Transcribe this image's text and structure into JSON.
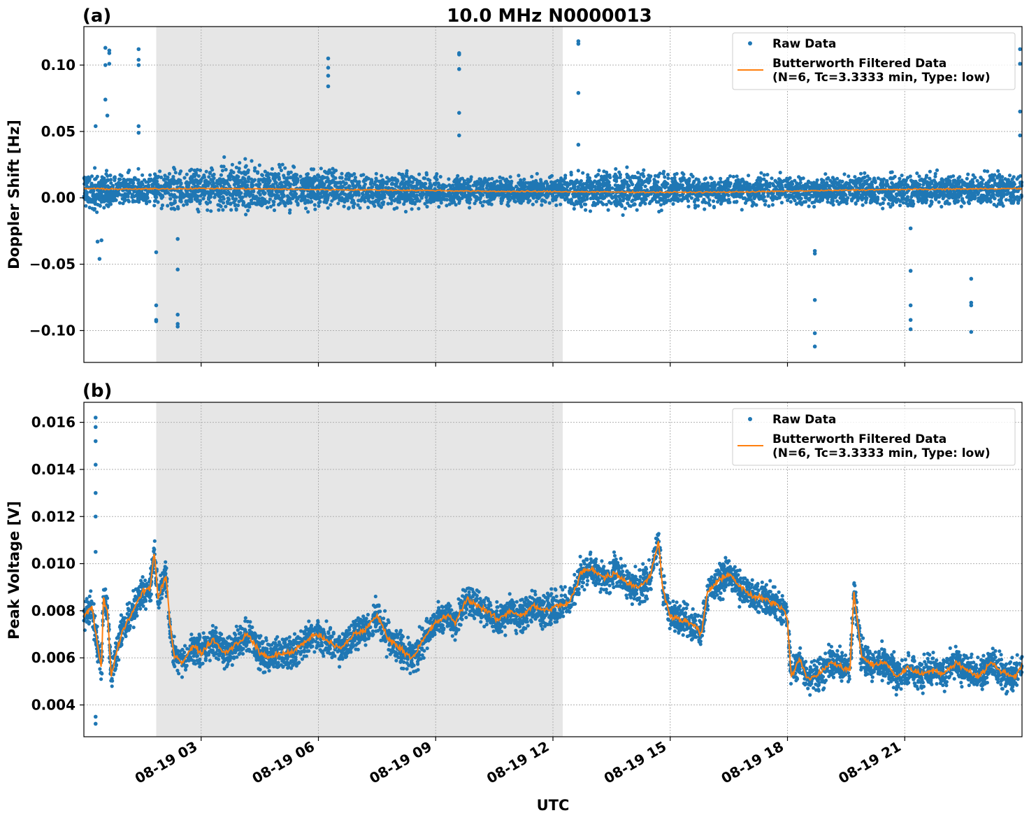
{
  "title": "10.0 MHz N0000013",
  "xlabel": "UTC",
  "x_tick_labels": [
    "08-19 03",
    "08-19 06",
    "08-19 09",
    "08-19 12",
    "08-19 15",
    "08-19 18",
    "08-19 21"
  ],
  "colors": {
    "raw": "#1f77b4",
    "filtered": "#ff7f0e",
    "shade": "#e6e6e6",
    "grid": "#b0b0b0"
  },
  "chart_data": [
    {
      "type": "scatter",
      "panel_label": "(a)",
      "ylabel": "Doppler Shift [Hz]",
      "xlim_hours": [
        0.0,
        24.0
      ],
      "ylim": [
        -0.124,
        0.129
      ],
      "y_ticks": [
        0.1,
        0.05,
        0.0,
        -0.05,
        -0.1
      ],
      "y_tick_labels": [
        "0.10",
        "0.05",
        "0.00",
        "−0.05",
        "−0.10"
      ],
      "shaded_region_hours": [
        1.85,
        12.25
      ],
      "grid": true,
      "legend_position": "top-right",
      "legend": [
        "Raw Data",
        "Butterworth Filtered Data\n(N=6, Tc=3.3333 min, Type: low)"
      ],
      "series": [
        {
          "name": "Raw Data",
          "style": "points",
          "band_x_hours": [
            0.0,
            1.0,
            2.0,
            3.0,
            4.0,
            5.0,
            6.0,
            7.0,
            8.0,
            9.0,
            10.0,
            11.0,
            12.0,
            13.0,
            14.0,
            15.0,
            16.0,
            17.0,
            18.0,
            19.0,
            20.0,
            21.0,
            22.0,
            23.0,
            24.0
          ],
          "band_low": [
            -0.014,
            -0.011,
            -0.012,
            -0.014,
            -0.019,
            -0.016,
            -0.013,
            -0.012,
            -0.011,
            -0.01,
            -0.008,
            -0.008,
            -0.007,
            -0.012,
            -0.014,
            -0.011,
            -0.01,
            -0.009,
            -0.009,
            -0.009,
            -0.009,
            -0.01,
            -0.01,
            -0.011,
            -0.01
          ],
          "band_high": [
            0.025,
            0.022,
            0.024,
            0.028,
            0.032,
            0.03,
            0.026,
            0.023,
            0.022,
            0.021,
            0.019,
            0.018,
            0.018,
            0.024,
            0.026,
            0.022,
            0.021,
            0.02,
            0.02,
            0.021,
            0.021,
            0.022,
            0.022,
            0.023,
            0.022
          ],
          "outliers": [
            {
              "x": 0.55,
              "y": 0.113
            },
            {
              "x": 0.55,
              "y": 0.1
            },
            {
              "x": 0.55,
              "y": 0.074
            },
            {
              "x": 0.6,
              "y": 0.062
            },
            {
              "x": 0.65,
              "y": 0.111
            },
            {
              "x": 0.65,
              "y": 0.101
            },
            {
              "x": 0.65,
              "y": 0.109
            },
            {
              "x": 1.4,
              "y": 0.112
            },
            {
              "x": 1.4,
              "y": 0.104
            },
            {
              "x": 1.4,
              "y": 0.1
            },
            {
              "x": 1.4,
              "y": 0.054
            },
            {
              "x": 1.4,
              "y": 0.049
            },
            {
              "x": 0.3,
              "y": 0.054
            },
            {
              "x": 0.35,
              "y": -0.033
            },
            {
              "x": 0.4,
              "y": -0.046
            },
            {
              "x": 0.45,
              "y": -0.032
            },
            {
              "x": 1.85,
              "y": -0.041
            },
            {
              "x": 1.85,
              "y": -0.081
            },
            {
              "x": 1.85,
              "y": -0.092
            },
            {
              "x": 1.85,
              "y": -0.093
            },
            {
              "x": 2.4,
              "y": -0.031
            },
            {
              "x": 2.4,
              "y": -0.054
            },
            {
              "x": 2.4,
              "y": -0.088
            },
            {
              "x": 2.4,
              "y": -0.095
            },
            {
              "x": 2.4,
              "y": -0.097
            },
            {
              "x": 6.25,
              "y": 0.105
            },
            {
              "x": 6.25,
              "y": 0.098
            },
            {
              "x": 6.25,
              "y": 0.092
            },
            {
              "x": 6.25,
              "y": 0.084
            },
            {
              "x": 9.6,
              "y": 0.109
            },
            {
              "x": 9.6,
              "y": 0.108
            },
            {
              "x": 9.6,
              "y": 0.097
            },
            {
              "x": 9.6,
              "y": 0.064
            },
            {
              "x": 9.6,
              "y": 0.047
            },
            {
              "x": 12.65,
              "y": 0.118
            },
            {
              "x": 12.65,
              "y": 0.116
            },
            {
              "x": 12.65,
              "y": 0.079
            },
            {
              "x": 12.65,
              "y": 0.04
            },
            {
              "x": 18.7,
              "y": -0.04
            },
            {
              "x": 18.7,
              "y": -0.042
            },
            {
              "x": 18.7,
              "y": -0.077
            },
            {
              "x": 18.7,
              "y": -0.102
            },
            {
              "x": 18.7,
              "y": -0.112
            },
            {
              "x": 21.15,
              "y": -0.023
            },
            {
              "x": 21.15,
              "y": -0.055
            },
            {
              "x": 21.15,
              "y": -0.081
            },
            {
              "x": 21.15,
              "y": -0.092
            },
            {
              "x": 21.15,
              "y": -0.099
            },
            {
              "x": 22.7,
              "y": -0.061
            },
            {
              "x": 22.7,
              "y": -0.079
            },
            {
              "x": 22.7,
              "y": -0.081
            },
            {
              "x": 22.7,
              "y": -0.101
            },
            {
              "x": 23.95,
              "y": 0.112
            },
            {
              "x": 23.95,
              "y": 0.101
            },
            {
              "x": 23.95,
              "y": 0.065
            },
            {
              "x": 23.95,
              "y": 0.047
            }
          ]
        },
        {
          "name": "Butterworth Filtered Data\n(N=6, Tc=3.3333 min, Type: low)",
          "style": "line",
          "x_hours": [
            0.0,
            1.0,
            2.0,
            3.0,
            4.0,
            5.0,
            6.0,
            7.0,
            8.0,
            9.0,
            10.0,
            11.0,
            12.0,
            13.0,
            14.0,
            15.0,
            16.0,
            17.0,
            18.0,
            19.0,
            20.0,
            21.0,
            22.0,
            23.0,
            24.0
          ],
          "y": [
            0.007,
            0.0065,
            0.0068,
            0.007,
            0.0068,
            0.0066,
            0.0062,
            0.006,
            0.0058,
            0.0055,
            0.005,
            0.0048,
            0.0047,
            0.0045,
            0.0043,
            0.0042,
            0.0042,
            0.0045,
            0.005,
            0.0055,
            0.006,
            0.0063,
            0.0065,
            0.0068,
            0.007
          ]
        }
      ]
    },
    {
      "type": "scatter",
      "panel_label": "(b)",
      "ylabel": "Peak Voltage [V]",
      "xlim_hours": [
        0.0,
        24.0
      ],
      "ylim": [
        0.00265,
        0.01685
      ],
      "y_ticks": [
        0.016,
        0.014,
        0.012,
        0.01,
        0.008,
        0.006,
        0.004
      ],
      "y_tick_labels": [
        "0.016",
        "0.014",
        "0.012",
        "0.010",
        "0.008",
        "0.006",
        "0.004"
      ],
      "shaded_region_hours": [
        1.85,
        12.25
      ],
      "grid": true,
      "legend_position": "top-right",
      "legend": [
        "Raw Data",
        "Butterworth Filtered Data\n(N=6, Tc=3.3333 min, Type: low)"
      ],
      "series": [
        {
          "name": "Raw Data",
          "style": "points",
          "spread": 0.0009,
          "spike_x_hours": [
            0.3,
            0.3,
            0.3,
            0.3,
            0.3,
            0.3,
            0.3,
            0.3,
            0.3
          ],
          "spike_y": [
            0.0162,
            0.0158,
            0.0152,
            0.0142,
            0.013,
            0.012,
            0.0105,
            0.0035,
            0.0032
          ]
        },
        {
          "name": "Butterworth Filtered Data\n(N=6, Tc=3.3333 min, Type: low)",
          "style": "line",
          "x_hours": [
            0.0,
            0.2,
            0.35,
            0.45,
            0.5,
            0.6,
            0.7,
            0.8,
            1.0,
            1.2,
            1.5,
            1.7,
            1.8,
            1.9,
            2.1,
            2.2,
            2.3,
            2.5,
            2.8,
            3.0,
            3.3,
            3.6,
            3.9,
            4.2,
            4.5,
            4.8,
            5.0,
            5.3,
            5.6,
            5.9,
            6.2,
            6.4,
            6.6,
            6.9,
            7.2,
            7.5,
            7.8,
            8.1,
            8.4,
            8.7,
            9.0,
            9.3,
            9.5,
            9.8,
            10.1,
            10.3,
            10.6,
            10.9,
            11.2,
            11.5,
            11.8,
            12.1,
            12.4,
            12.6,
            12.7,
            13.0,
            13.3,
            13.6,
            13.9,
            14.2,
            14.5,
            14.7,
            14.8,
            15.0,
            15.3,
            15.6,
            15.8,
            15.95,
            16.2,
            16.5,
            16.8,
            17.1,
            17.4,
            17.7,
            17.95,
            18.0,
            18.1,
            18.3,
            18.5,
            18.8,
            19.1,
            19.4,
            19.6,
            19.7,
            19.9,
            20.2,
            20.5,
            20.8,
            21.1,
            21.4,
            21.7,
            22.0,
            22.3,
            22.6,
            22.9,
            23.2,
            23.5,
            23.8,
            24.0
          ],
          "y": [
            0.0078,
            0.0082,
            0.0065,
            0.0055,
            0.0085,
            0.008,
            0.0052,
            0.006,
            0.0072,
            0.0078,
            0.0088,
            0.009,
            0.0105,
            0.0085,
            0.0095,
            0.0075,
            0.0062,
            0.0058,
            0.0065,
            0.0062,
            0.0068,
            0.0062,
            0.0066,
            0.007,
            0.0062,
            0.006,
            0.0062,
            0.0062,
            0.0066,
            0.007,
            0.0068,
            0.0065,
            0.0064,
            0.007,
            0.0072,
            0.0078,
            0.0068,
            0.0064,
            0.006,
            0.0068,
            0.0075,
            0.0078,
            0.0075,
            0.0085,
            0.0082,
            0.008,
            0.0076,
            0.008,
            0.0078,
            0.0082,
            0.008,
            0.0082,
            0.0083,
            0.009,
            0.0096,
            0.0098,
            0.0094,
            0.0096,
            0.0092,
            0.009,
            0.0095,
            0.011,
            0.009,
            0.0078,
            0.0076,
            0.0074,
            0.007,
            0.0088,
            0.0092,
            0.0096,
            0.009,
            0.0086,
            0.0085,
            0.0083,
            0.008,
            0.0075,
            0.0052,
            0.006,
            0.0051,
            0.0053,
            0.0058,
            0.0056,
            0.0055,
            0.0088,
            0.006,
            0.0057,
            0.0058,
            0.0052,
            0.0056,
            0.0053,
            0.0055,
            0.0053,
            0.0058,
            0.0055,
            0.0052,
            0.0058,
            0.0054,
            0.0052,
            0.0057
          ]
        }
      ]
    }
  ]
}
